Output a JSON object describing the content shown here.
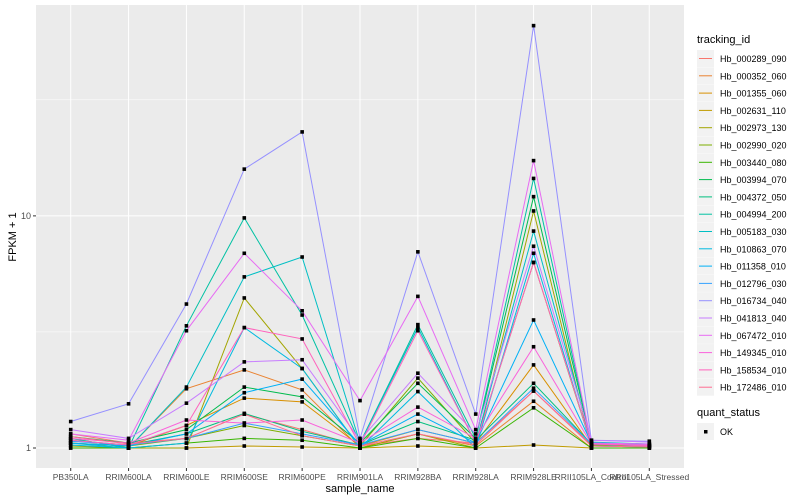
{
  "chart_data": {
    "type": "line",
    "xlabel": "sample_name",
    "ylabel": "FPKM + 1",
    "y_scale": "log10",
    "ylim": [
      0.82,
      81
    ],
    "y_ticks": [
      1,
      10
    ],
    "grid": true,
    "legend_placement": "right",
    "categories": [
      "PB350LA",
      "RRIM600LA",
      "RRIM600LE",
      "RRIM600SE",
      "RRIM600PE",
      "RRIM901LA",
      "RRIM928BA",
      "RRIM928LA",
      "RRIM928LE",
      "RRII105LA_Control",
      "RRII105LA_Stressed"
    ],
    "legend_title": "tracking_id",
    "series": [
      {
        "name": "Hb_000289_090",
        "color": "#F8766D",
        "values": [
          1.15,
          1.05,
          1.1,
          1.4,
          1.2,
          1.02,
          1.1,
          1.05,
          1.76,
          1.03,
          1.02
        ]
      },
      {
        "name": "Hb_000352_060",
        "color": "#EA8331",
        "values": [
          1.1,
          1.0,
          1.8,
          2.17,
          1.78,
          1.0,
          1.15,
          1.02,
          1.59,
          1.0,
          1.0
        ]
      },
      {
        "name": "Hb_001355_060",
        "color": "#D89000",
        "values": [
          1.05,
          1.02,
          1.25,
          1.64,
          1.58,
          1.02,
          1.2,
          1.05,
          2.28,
          1.02,
          1.01
        ]
      },
      {
        "name": "Hb_002631_110",
        "color": "#C09B00",
        "values": [
          1.0,
          1.0,
          1.0,
          1.02,
          1.01,
          1.0,
          1.02,
          1.0,
          1.03,
          1.0,
          1.0
        ]
      },
      {
        "name": "Hb_002973_130",
        "color": "#A3A500",
        "values": [
          1.02,
          1.0,
          1.0,
          4.43,
          2.2,
          1.0,
          1.15,
          1.0,
          10.5,
          1.0,
          1.0
        ]
      },
      {
        "name": "Hb_002990_020",
        "color": "#7CAE00",
        "values": [
          1.05,
          1.02,
          1.1,
          1.25,
          1.13,
          1.02,
          2.0,
          1.05,
          6.3,
          1.03,
          1.02
        ]
      },
      {
        "name": "Hb_003440_080",
        "color": "#39B600",
        "values": [
          1.0,
          1.0,
          1.05,
          1.1,
          1.08,
          1.0,
          1.1,
          1.0,
          1.49,
          1.0,
          1.0
        ]
      },
      {
        "name": "Hb_003994_070",
        "color": "#00BB4E",
        "values": [
          1.12,
          1.05,
          1.2,
          1.83,
          1.66,
          1.05,
          1.9,
          1.1,
          12.1,
          1.05,
          1.03
        ]
      },
      {
        "name": "Hb_004372_050",
        "color": "#00BF7D",
        "values": [
          1.08,
          1.03,
          1.15,
          1.41,
          1.18,
          1.03,
          1.3,
          1.08,
          1.9,
          1.04,
          1.02
        ]
      },
      {
        "name": "Hb_004994_200",
        "color": "#00C1A3",
        "values": [
          1.1,
          1.0,
          3.36,
          9.8,
          3.74,
          1.05,
          3.4,
          1.1,
          14.5,
          1.05,
          1.03
        ]
      },
      {
        "name": "Hb_005183_030",
        "color": "#00BFC4",
        "values": [
          1.05,
          1.0,
          1.83,
          5.46,
          6.65,
          1.05,
          3.3,
          1.05,
          8.6,
          1.06,
          1.04
        ]
      },
      {
        "name": "Hb_010863_070",
        "color": "#00BAE0",
        "values": [
          1.03,
          1.0,
          1.05,
          3.3,
          2.2,
          1.0,
          1.75,
          1.0,
          6.9,
          1.02,
          1.01
        ]
      },
      {
        "name": "Hb_011358_010",
        "color": "#00B0F6",
        "values": [
          1.05,
          1.02,
          1.15,
          1.73,
          1.98,
          1.03,
          1.4,
          1.05,
          3.56,
          1.05,
          1.03
        ]
      },
      {
        "name": "Hb_012796_030",
        "color": "#35A2FF",
        "values": [
          1.07,
          1.03,
          1.1,
          1.28,
          1.15,
          1.03,
          1.2,
          1.05,
          1.81,
          1.04,
          1.02
        ]
      },
      {
        "name": "Hb_016734_040",
        "color": "#9590FF",
        "values": [
          1.3,
          1.55,
          4.17,
          15.9,
          23,
          1.1,
          7,
          1.4,
          66,
          1.08,
          1.07
        ]
      },
      {
        "name": "Hb_041813_040",
        "color": "#C77CFF",
        "values": [
          1.2,
          1.1,
          1.56,
          2.35,
          2.4,
          1.08,
          2.1,
          1.15,
          7.4,
          1.08,
          1.06
        ]
      },
      {
        "name": "Hb_067472_010",
        "color": "#E76BF3",
        "values": [
          1.15,
          1.08,
          3.2,
          6.9,
          3.9,
          1.6,
          4.5,
          1.2,
          17.3,
          1.05,
          1.04
        ]
      },
      {
        "name": "Hb_149345_010",
        "color": "#FA62DB",
        "values": [
          1.1,
          1.05,
          1.32,
          1.28,
          1.32,
          1.05,
          1.5,
          1.1,
          2.73,
          1.04,
          1.03
        ]
      },
      {
        "name": "Hb_158534_010",
        "color": "#FF62BC",
        "values": [
          1.08,
          1.03,
          1.25,
          3.3,
          2.95,
          1.03,
          3.2,
          1.05,
          6.3,
          1.04,
          1.02
        ]
      },
      {
        "name": "Hb_172486_010",
        "color": "#FF6C91",
        "values": [
          1.12,
          1.04,
          1.1,
          1.4,
          1.13,
          1.02,
          1.15,
          1.03,
          1.76,
          1.02,
          1.01
        ]
      }
    ],
    "shape_legend_title": "quant_status",
    "shape_legend_items": [
      "OK"
    ]
  }
}
